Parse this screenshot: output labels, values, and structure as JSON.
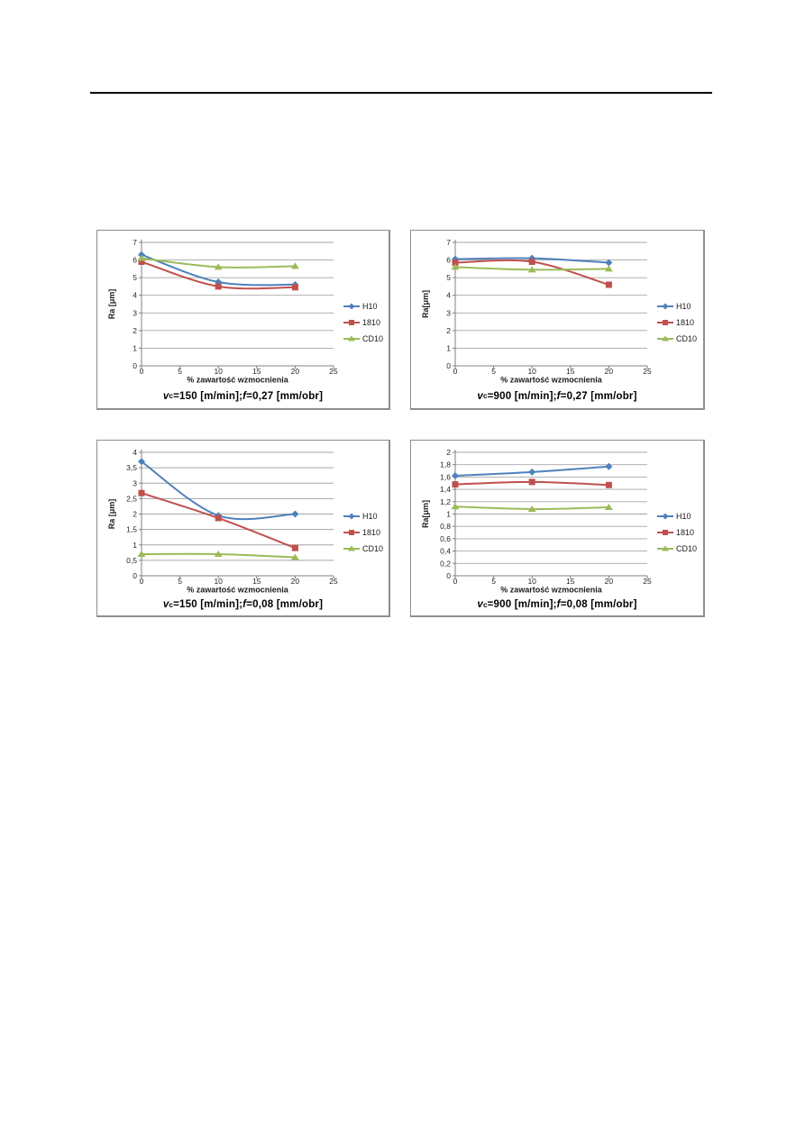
{
  "page": {
    "kind": "document-page-with-four-charts",
    "top_rule": {
      "present": true,
      "color": "#000000"
    }
  },
  "style": {
    "grid_color": "#a6a6a6",
    "axis_color": "#808080",
    "tick_text_color": "#262626",
    "label_text_color": "#1a1a1a"
  },
  "chart_data": [
    {
      "type": "line",
      "x": [
        0,
        10,
        20
      ],
      "series": [
        {
          "name": "H10",
          "color": "#4F81BD",
          "marker": "diamond",
          "values": [
            6.3,
            4.75,
            4.6
          ]
        },
        {
          "name": "1810",
          "color": "#C0504D",
          "marker": "square",
          "values": [
            5.9,
            4.5,
            4.45
          ]
        },
        {
          "name": "CD10",
          "color": "#9BBB59",
          "marker": "triangle",
          "values": [
            6.1,
            5.6,
            5.65
          ]
        }
      ],
      "title": "vc=150 [m/min]; f=0,27 [mm/obr]",
      "xlabel": "% zawartość wzmocnienia",
      "ylabel": "Ra [μm]",
      "xlim": [
        0,
        25
      ],
      "ylim": [
        0,
        7
      ],
      "grid": true,
      "legend_position": "right",
      "xticks": {
        "values": [
          0,
          5,
          10,
          15,
          20,
          25
        ],
        "labels": [
          "0",
          "5",
          "10",
          "15",
          "20",
          "25"
        ]
      },
      "yticks": {
        "values": [
          0,
          1,
          2,
          3,
          4,
          5,
          6,
          7
        ],
        "labels": [
          "0",
          "1",
          "2",
          "3",
          "4",
          "5",
          "6",
          "7"
        ]
      },
      "caption": {
        "v_symbol": "v",
        "v_sub": "c",
        "v_rest": "=150 [m/min]; ",
        "f_symbol": "f",
        "f_rest": "=0,27 [mm/obr]"
      }
    },
    {
      "type": "line",
      "x": [
        0,
        10,
        20
      ],
      "series": [
        {
          "name": "H10",
          "color": "#4F81BD",
          "marker": "diamond",
          "values": [
            6.05,
            6.1,
            5.85
          ]
        },
        {
          "name": "1810",
          "color": "#C0504D",
          "marker": "square",
          "values": [
            5.85,
            5.9,
            4.6
          ]
        },
        {
          "name": "CD10",
          "color": "#9BBB59",
          "marker": "triangle",
          "values": [
            5.6,
            5.45,
            5.5
          ]
        }
      ],
      "title": "vc=900 [m/min]; f=0,27 [mm/obr]",
      "xlabel": "% zawartość wzmocnienia",
      "ylabel": "Ra[μm]",
      "xlim": [
        0,
        25
      ],
      "ylim": [
        0,
        7
      ],
      "grid": true,
      "legend_position": "right",
      "xticks": {
        "values": [
          0,
          5,
          10,
          15,
          20,
          25
        ],
        "labels": [
          "0",
          "5",
          "10",
          "15",
          "20",
          "25"
        ]
      },
      "yticks": {
        "values": [
          0,
          1,
          2,
          3,
          4,
          5,
          6,
          7
        ],
        "labels": [
          "0",
          "1",
          "2",
          "3",
          "4",
          "5",
          "6",
          "7"
        ]
      },
      "caption": {
        "v_symbol": "v",
        "v_sub": "c",
        "v_rest": "=900 [m/min]; ",
        "f_symbol": "f",
        "f_rest": "=0,27 [mm/obr]"
      }
    },
    {
      "type": "line",
      "x": [
        0,
        10,
        20
      ],
      "series": [
        {
          "name": "H10",
          "color": "#4F81BD",
          "marker": "diamond",
          "values": [
            3.7,
            1.95,
            2.0
          ]
        },
        {
          "name": "1810",
          "color": "#C0504D",
          "marker": "square",
          "values": [
            2.68,
            1.87,
            0.9
          ]
        },
        {
          "name": "CD10",
          "color": "#9BBB59",
          "marker": "triangle",
          "values": [
            0.7,
            0.7,
            0.6
          ]
        }
      ],
      "title": "vc=150 [m/min]; f=0,08 [mm/obr]",
      "xlabel": "% zawartość wzmocnienia",
      "ylabel": "Ra [μm]",
      "xlim": [
        0,
        25
      ],
      "ylim": [
        0,
        4
      ],
      "grid": true,
      "legend_position": "right",
      "xticks": {
        "values": [
          0,
          5,
          10,
          15,
          20,
          25
        ],
        "labels": [
          "0",
          "5",
          "10",
          "15",
          "20",
          "25"
        ]
      },
      "yticks": {
        "values": [
          0,
          0.5,
          1,
          1.5,
          2,
          2.5,
          3,
          3.5,
          4
        ],
        "labels": [
          "0",
          "0,5",
          "1",
          "1,5",
          "2",
          "2,5",
          "3",
          "3,5",
          "4"
        ]
      },
      "caption": {
        "v_symbol": "v",
        "v_sub": "c",
        "v_rest": "=150 [m/min]; ",
        "f_symbol": "f",
        "f_rest": "=0,08 [mm/obr]"
      }
    },
    {
      "type": "line",
      "x": [
        0,
        10,
        20
      ],
      "series": [
        {
          "name": "H10",
          "color": "#4F81BD",
          "marker": "diamond",
          "values": [
            1.62,
            1.68,
            1.77
          ]
        },
        {
          "name": "1810",
          "color": "#C0504D",
          "marker": "square",
          "values": [
            1.48,
            1.52,
            1.47
          ]
        },
        {
          "name": "CD10",
          "color": "#9BBB59",
          "marker": "triangle",
          "values": [
            1.12,
            1.08,
            1.11
          ]
        }
      ],
      "title": "vc=900 [m/min]; f=0,08 [mm/obr]",
      "xlabel": "% zawartość wzmocnienia",
      "ylabel": "Ra[μm]",
      "xlim": [
        0,
        25
      ],
      "ylim": [
        0,
        2
      ],
      "grid": true,
      "legend_position": "right",
      "xticks": {
        "values": [
          0,
          5,
          10,
          15,
          20,
          25
        ],
        "labels": [
          "0",
          "5",
          "10",
          "15",
          "20",
          "25"
        ]
      },
      "yticks": {
        "values": [
          0,
          0.2,
          0.4,
          0.6,
          0.8,
          1,
          1.2,
          1.4,
          1.6,
          1.8,
          2
        ],
        "labels": [
          "0",
          "0,2",
          "0,4",
          "0,6",
          "0,8",
          "1",
          "1,2",
          "1,4",
          "1,6",
          "1,8",
          "2"
        ]
      },
      "caption": {
        "v_symbol": "v",
        "v_sub": "c",
        "v_rest": "=900 [m/min]; ",
        "f_symbol": "f",
        "f_rest": "=0,08 [mm/obr]"
      }
    }
  ]
}
